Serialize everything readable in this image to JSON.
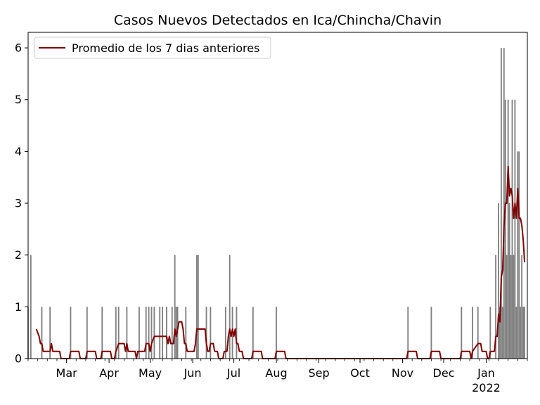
{
  "chart_data": {
    "type": "bar",
    "title": "Casos Nuevos Detectados en Ica/Chincha/Chavin",
    "xlabel": "",
    "ylabel": "",
    "ylim": [
      0,
      6.3
    ],
    "yticks": [
      0,
      1,
      2,
      3,
      4,
      5,
      6
    ],
    "xlim": [
      "2021-02-01",
      "2022-01-31"
    ],
    "xticks": [
      {
        "date": "2021-03-01",
        "label": "Mar"
      },
      {
        "date": "2021-04-01",
        "label": "Apr"
      },
      {
        "date": "2021-05-01",
        "label": "May"
      },
      {
        "date": "2021-06-01",
        "label": "Jun"
      },
      {
        "date": "2021-07-01",
        "label": "Jul"
      },
      {
        "date": "2021-08-01",
        "label": "Aug"
      },
      {
        "date": "2021-09-01",
        "label": "Sep"
      },
      {
        "date": "2021-10-01",
        "label": "Oct"
      },
      {
        "date": "2021-11-01",
        "label": "Nov"
      },
      {
        "date": "2021-12-01",
        "label": "Dec"
      },
      {
        "date": "2022-01-01",
        "label": "Jan",
        "sublabel": "2022"
      }
    ],
    "grid": false,
    "legend_position": "top-left",
    "series": [
      {
        "name": "",
        "kind": "bar",
        "color": "#808080",
        "points": [
          [
            "2021-02-01",
            1
          ],
          [
            "2021-02-03",
            2
          ],
          [
            "2021-02-11",
            1
          ],
          [
            "2021-02-17",
            1
          ],
          [
            "2021-03-04",
            1
          ],
          [
            "2021-03-16",
            1
          ],
          [
            "2021-03-27",
            1
          ],
          [
            "2021-04-06",
            1
          ],
          [
            "2021-04-08",
            1
          ],
          [
            "2021-04-14",
            1
          ],
          [
            "2021-04-23",
            1
          ],
          [
            "2021-04-28",
            1
          ],
          [
            "2021-04-30",
            1
          ],
          [
            "2021-05-02",
            1
          ],
          [
            "2021-05-04",
            1
          ],
          [
            "2021-05-08",
            1
          ],
          [
            "2021-05-10",
            1
          ],
          [
            "2021-05-13",
            1
          ],
          [
            "2021-05-17",
            1
          ],
          [
            "2021-05-19",
            2
          ],
          [
            "2021-05-20",
            1
          ],
          [
            "2021-05-21",
            1
          ],
          [
            "2021-05-27",
            1
          ],
          [
            "2021-06-04",
            2
          ],
          [
            "2021-06-05",
            2
          ],
          [
            "2021-06-11",
            1
          ],
          [
            "2021-06-14",
            1
          ],
          [
            "2021-06-25",
            1
          ],
          [
            "2021-06-28",
            2
          ],
          [
            "2021-06-30",
            1
          ],
          [
            "2021-07-03",
            1
          ],
          [
            "2021-07-15",
            1
          ],
          [
            "2021-08-01",
            1
          ],
          [
            "2021-11-05",
            1
          ],
          [
            "2021-11-22",
            1
          ],
          [
            "2021-12-14",
            1
          ],
          [
            "2021-12-22",
            1
          ],
          [
            "2021-12-26",
            1
          ],
          [
            "2022-01-04",
            1
          ],
          [
            "2022-01-08",
            2
          ],
          [
            "2022-01-10",
            3
          ],
          [
            "2022-01-11",
            1
          ],
          [
            "2022-01-12",
            6
          ],
          [
            "2022-01-13",
            1
          ],
          [
            "2022-01-14",
            6
          ],
          [
            "2022-01-15",
            5
          ],
          [
            "2022-01-16",
            2
          ],
          [
            "2022-01-17",
            5
          ],
          [
            "2022-01-18",
            3
          ],
          [
            "2022-01-19",
            2
          ],
          [
            "2022-01-20",
            5
          ],
          [
            "2022-01-21",
            2
          ],
          [
            "2022-01-22",
            5
          ],
          [
            "2022-01-23",
            1
          ],
          [
            "2022-01-24",
            4
          ],
          [
            "2022-01-25",
            4
          ],
          [
            "2022-01-26",
            1
          ],
          [
            "2022-01-27",
            2
          ],
          [
            "2022-01-28",
            1
          ],
          [
            "2022-01-29",
            1
          ]
        ]
      },
      {
        "name": "Promedio de los 7 dias anteriores",
        "kind": "line",
        "color": "#800000",
        "points": [
          [
            "2021-02-07",
            0.57
          ],
          [
            "2021-02-09",
            0.43
          ],
          [
            "2021-02-10",
            0.29
          ],
          [
            "2021-02-11",
            0.29
          ],
          [
            "2021-02-12",
            0.14
          ],
          [
            "2021-02-17",
            0.14
          ],
          [
            "2021-02-18",
            0.29
          ],
          [
            "2021-02-19",
            0.14
          ],
          [
            "2021-02-24",
            0.14
          ],
          [
            "2021-02-25",
            0.0
          ],
          [
            "2021-03-03",
            0.0
          ],
          [
            "2021-03-04",
            0.14
          ],
          [
            "2021-03-10",
            0.14
          ],
          [
            "2021-03-11",
            0.0
          ],
          [
            "2021-03-15",
            0.0
          ],
          [
            "2021-03-16",
            0.14
          ],
          [
            "2021-03-22",
            0.14
          ],
          [
            "2021-03-23",
            0.0
          ],
          [
            "2021-03-26",
            0.0
          ],
          [
            "2021-03-27",
            0.14
          ],
          [
            "2021-04-02",
            0.14
          ],
          [
            "2021-04-03",
            0.0
          ],
          [
            "2021-04-05",
            0.0
          ],
          [
            "2021-04-06",
            0.14
          ],
          [
            "2021-04-08",
            0.29
          ],
          [
            "2021-04-12",
            0.29
          ],
          [
            "2021-04-13",
            0.14
          ],
          [
            "2021-04-14",
            0.29
          ],
          [
            "2021-04-15",
            0.14
          ],
          [
            "2021-04-20",
            0.14
          ],
          [
            "2021-04-21",
            0.0
          ],
          [
            "2021-04-22",
            0.14
          ],
          [
            "2021-04-27",
            0.14
          ],
          [
            "2021-04-28",
            0.29
          ],
          [
            "2021-04-30",
            0.29
          ],
          [
            "2021-05-01",
            0.14
          ],
          [
            "2021-05-02",
            0.29
          ],
          [
            "2021-05-04",
            0.43
          ],
          [
            "2021-05-13",
            0.43
          ],
          [
            "2021-05-14",
            0.29
          ],
          [
            "2021-05-15",
            0.43
          ],
          [
            "2021-05-16",
            0.29
          ],
          [
            "2021-05-18",
            0.29
          ],
          [
            "2021-05-19",
            0.57
          ],
          [
            "2021-05-20",
            0.43
          ],
          [
            "2021-05-21",
            0.57
          ],
          [
            "2021-05-22",
            0.71
          ],
          [
            "2021-05-24",
            0.71
          ],
          [
            "2021-05-25",
            0.57
          ],
          [
            "2021-05-26",
            0.29
          ],
          [
            "2021-05-27",
            0.29
          ],
          [
            "2021-05-28",
            0.14
          ],
          [
            "2021-06-02",
            0.14
          ],
          [
            "2021-06-03",
            0.29
          ],
          [
            "2021-06-04",
            0.57
          ],
          [
            "2021-06-10",
            0.57
          ],
          [
            "2021-06-11",
            0.29
          ],
          [
            "2021-06-12",
            0.14
          ],
          [
            "2021-06-13",
            0.14
          ],
          [
            "2021-06-14",
            0.29
          ],
          [
            "2021-06-16",
            0.29
          ],
          [
            "2021-06-17",
            0.14
          ],
          [
            "2021-06-19",
            0.14
          ],
          [
            "2021-06-20",
            0.0
          ],
          [
            "2021-06-23",
            0.0
          ],
          [
            "2021-06-24",
            0.14
          ],
          [
            "2021-06-26",
            0.14
          ],
          [
            "2021-06-27",
            0.43
          ],
          [
            "2021-06-28",
            0.57
          ],
          [
            "2021-06-29",
            0.43
          ],
          [
            "2021-06-30",
            0.57
          ],
          [
            "2021-07-01",
            0.43
          ],
          [
            "2021-07-02",
            0.57
          ],
          [
            "2021-07-03",
            0.29
          ],
          [
            "2021-07-04",
            0.29
          ],
          [
            "2021-07-05",
            0.14
          ],
          [
            "2021-07-07",
            0.14
          ],
          [
            "2021-07-08",
            0.0
          ],
          [
            "2021-07-14",
            0.0
          ],
          [
            "2021-07-15",
            0.14
          ],
          [
            "2021-07-21",
            0.14
          ],
          [
            "2021-07-22",
            0.0
          ],
          [
            "2021-07-31",
            0.0
          ],
          [
            "2021-08-01",
            0.14
          ],
          [
            "2021-08-07",
            0.14
          ],
          [
            "2021-08-08",
            0.0
          ],
          [
            "2021-11-04",
            0.0
          ],
          [
            "2021-11-05",
            0.14
          ],
          [
            "2021-11-11",
            0.14
          ],
          [
            "2021-11-12",
            0.0
          ],
          [
            "2021-11-21",
            0.0
          ],
          [
            "2021-11-22",
            0.14
          ],
          [
            "2021-11-28",
            0.14
          ],
          [
            "2021-11-29",
            0.0
          ],
          [
            "2021-12-13",
            0.0
          ],
          [
            "2021-12-14",
            0.14
          ],
          [
            "2021-12-20",
            0.14
          ],
          [
            "2021-12-21",
            0.0
          ],
          [
            "2021-12-22",
            0.14
          ],
          [
            "2021-12-26",
            0.29
          ],
          [
            "2021-12-28",
            0.29
          ],
          [
            "2021-12-29",
            0.14
          ],
          [
            "2022-01-01",
            0.14
          ],
          [
            "2022-01-02",
            0.0
          ],
          [
            "2022-01-03",
            0.0
          ],
          [
            "2022-01-04",
            0.14
          ],
          [
            "2022-01-07",
            0.14
          ],
          [
            "2022-01-08",
            0.43
          ],
          [
            "2022-01-09",
            0.43
          ],
          [
            "2022-01-10",
            0.86
          ],
          [
            "2022-01-11",
            0.71
          ],
          [
            "2022-01-12",
            1.57
          ],
          [
            "2022-01-13",
            1.71
          ],
          [
            "2022-01-14",
            2.57
          ],
          [
            "2022-01-15",
            3.0
          ],
          [
            "2022-01-16",
            3.0
          ],
          [
            "2022-01-17",
            3.71
          ],
          [
            "2022-01-18",
            3.14
          ],
          [
            "2022-01-19",
            3.29
          ],
          [
            "2022-01-20",
            3.14
          ],
          [
            "2022-01-21",
            2.71
          ],
          [
            "2022-01-22",
            3.0
          ],
          [
            "2022-01-23",
            2.71
          ],
          [
            "2022-01-24",
            3.29
          ],
          [
            "2022-01-25",
            2.71
          ],
          [
            "2022-01-26",
            2.71
          ],
          [
            "2022-01-27",
            2.57
          ],
          [
            "2022-01-28",
            2.29
          ],
          [
            "2022-01-29",
            1.86
          ]
        ]
      }
    ]
  }
}
